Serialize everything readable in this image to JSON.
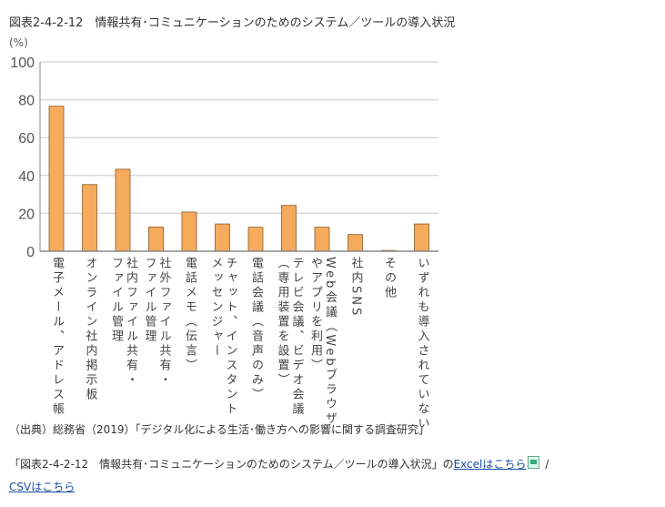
{
  "chart_data": {
    "type": "bar",
    "title": "図表2-4-2-12　情報共有･コミュニケーションのためのシステム／ツールの導入状況",
    "ylabel": "(%)",
    "xlabel": "",
    "ylim": [
      0,
      100
    ],
    "yticks": [
      0,
      20,
      40,
      60,
      80,
      100
    ],
    "grid": true,
    "bar_color": "#F5AA5C",
    "bar_edge": "#8a5a2a",
    "categories": [
      "電子メール、アドレス帳",
      "オンライン社内掲示板",
      "社内ファイル共有・\nファイル管理",
      "社外ファイル共有・\nファイル管理",
      "電話メモ（伝言）",
      "チャット、インスタント\nメッセンジャー",
      "電話会議（音声のみ）",
      "テレビ会議、ビデオ会議\n（専用装置を設置）",
      "Web会議（Webブラウザ\nやアプリを利用）",
      "社内SNS",
      "その他",
      "いずれも導入されていない"
    ],
    "values": [
      76.6,
      35.2,
      43.3,
      12.8,
      20.7,
      14.4,
      12.7,
      24.2,
      12.7,
      8.8,
      0.4,
      14.4
    ]
  },
  "source": "（出典）総務省（2019）「デジタル化による生活･働き方への影響に関する調査研究」",
  "download": {
    "prefix": "「図表2-4-2-12　情報共有･コミュニケーションのためのシステム／ツールの導入状況」の",
    "excel_link": "Excelはこちら",
    "separator": " /",
    "csv_link": "CSVはこちら",
    "excel_icon": "excel-file-icon"
  }
}
